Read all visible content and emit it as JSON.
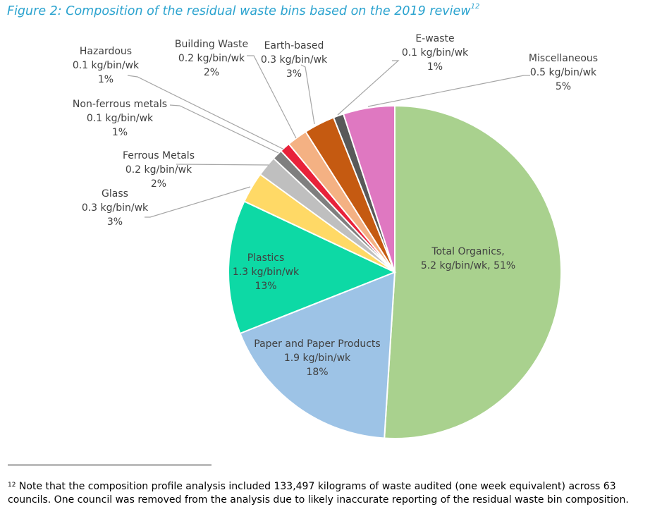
{
  "figure": {
    "title": "Figure 2: Composition of the residual waste bins based on the 2019 review",
    "title_ref": "12"
  },
  "chart_data": {
    "type": "pie",
    "title": "Figure 2: Composition of the residual waste bins based on the 2019 review",
    "unit": "kg/bin/wk",
    "slices": [
      {
        "name": "Total Organics",
        "value": 5.2,
        "percent": 51,
        "color": "#a9d18e",
        "label": [
          "Total Organics,",
          "5.2 kg/bin/wk, 51%"
        ]
      },
      {
        "name": "Paper and Paper Products",
        "value": 1.9,
        "percent": 18,
        "color": "#9dc3e6",
        "label": [
          "Paper and Paper Products",
          "1.9 kg/bin/wk",
          "18%"
        ]
      },
      {
        "name": "Plastics",
        "value": 1.3,
        "percent": 13,
        "color": "#0dd9a5",
        "label": [
          "Plastics",
          "1.3 kg/bin/wk",
          "13%"
        ]
      },
      {
        "name": "Glass",
        "value": 0.3,
        "percent": 3,
        "color": "#ffd966",
        "label": [
          "Glass",
          "0.3 kg/bin/wk",
          "3%"
        ]
      },
      {
        "name": "Ferrous Metals",
        "value": 0.2,
        "percent": 2,
        "color": "#bfbfbf",
        "label": [
          "Ferrous Metals",
          "0.2 kg/bin/wk",
          "2%"
        ]
      },
      {
        "name": "Non-ferrous metals",
        "value": 0.1,
        "percent": 1,
        "color": "#7f7f7f",
        "label": [
          "Non-ferrous metals",
          "0.1 kg/bin/wk",
          "1%"
        ]
      },
      {
        "name": "Hazardous",
        "value": 0.1,
        "percent": 1,
        "color": "#e8213a",
        "label": [
          "Hazardous",
          "0.1 kg/bin/wk",
          "1%"
        ]
      },
      {
        "name": "Building Waste",
        "value": 0.2,
        "percent": 2,
        "color": "#f4b183",
        "label": [
          "Building Waste",
          "0.2 kg/bin/wk",
          "2%"
        ]
      },
      {
        "name": "Earth-based",
        "value": 0.3,
        "percent": 3,
        "color": "#c55a11",
        "label": [
          "Earth-based",
          "0.3 kg/bin/wk",
          "3%"
        ]
      },
      {
        "name": "E-waste",
        "value": 0.1,
        "percent": 1,
        "color": "#595959",
        "label": [
          "E-waste",
          "0.1 kg/bin/wk",
          "1%"
        ]
      },
      {
        "name": "Miscellaneous",
        "value": 0.5,
        "percent": 5,
        "color": "#df78c1",
        "label": [
          "Miscellaneous",
          "0.5 kg/bin/wk",
          "5%"
        ]
      }
    ]
  },
  "footnote": {
    "ref": "12",
    "text": " Note that the composition profile analysis included 133,497 kilograms of waste audited (one week equivalent) across 63 councils. One council was removed from the analysis due to likely inaccurate reporting of the residual waste bin composition."
  }
}
